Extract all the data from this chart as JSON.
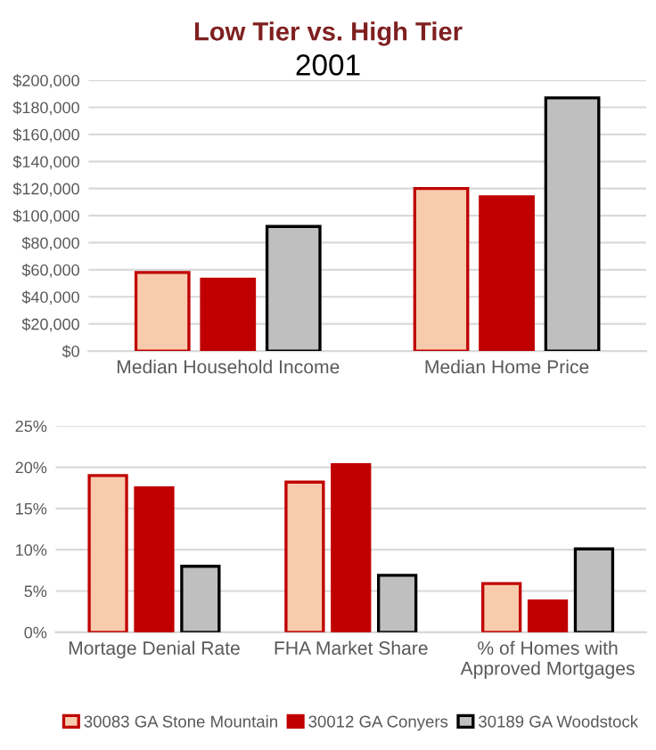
{
  "chart_data": [
    {
      "type": "bar",
      "title": "Low Tier vs. High Tier",
      "subtitle": "2001",
      "categories": [
        "Median Household Income",
        "Median Home Price"
      ],
      "series": [
        {
          "color": "#f8cbad",
          "values": [
            58000,
            120000
          ]
        },
        {
          "color": "#c00000",
          "values": [
            53000,
            114000
          ]
        },
        {
          "color": "#bfbfbf",
          "values": [
            92000,
            187000
          ]
        }
      ],
      "ylim": [
        0,
        200000
      ],
      "yticks": [
        {
          "value": 0,
          "label": "$0"
        },
        {
          "value": 20000,
          "label": "$20,000"
        },
        {
          "value": 40000,
          "label": "$40,000"
        },
        {
          "value": 60000,
          "label": "$60,000"
        },
        {
          "value": 80000,
          "label": "$80,000"
        },
        {
          "value": 100000,
          "label": "$100,000"
        },
        {
          "value": 120000,
          "label": "$120,000"
        },
        {
          "value": 140000,
          "label": "$140,000"
        },
        {
          "value": 160000,
          "label": "$160,000"
        },
        {
          "value": 180000,
          "label": "$180,000"
        },
        {
          "value": 200000,
          "label": "$200,000"
        }
      ],
      "grid": "y",
      "legend": false
    },
    {
      "type": "bar",
      "categories": [
        "Mortage Denial Rate",
        "FHA Market Share",
        "% of Homes with\nApproved Mortgages"
      ],
      "series": [
        {
          "name": "30083 GA Stone Mountain",
          "color": "#f8cbad",
          "values": [
            19,
            18.2,
            5.9
          ]
        },
        {
          "name": "30012 GA Conyers",
          "color": "#c00000",
          "values": [
            17.5,
            20.3,
            3.8
          ]
        },
        {
          "name": "30189 GA Woodstock",
          "color": "#bfbfbf",
          "values": [
            8,
            6.9,
            10.1
          ]
        }
      ],
      "ylim": [
        0,
        25
      ],
      "yticks": [
        {
          "value": 0,
          "label": "0%"
        },
        {
          "value": 5,
          "label": "5%"
        },
        {
          "value": 10,
          "label": "10%"
        },
        {
          "value": 15,
          "label": "15%"
        },
        {
          "value": 20,
          "label": "20%"
        },
        {
          "value": 25,
          "label": "25%"
        }
      ],
      "grid": "y",
      "legend": "bottom"
    }
  ]
}
